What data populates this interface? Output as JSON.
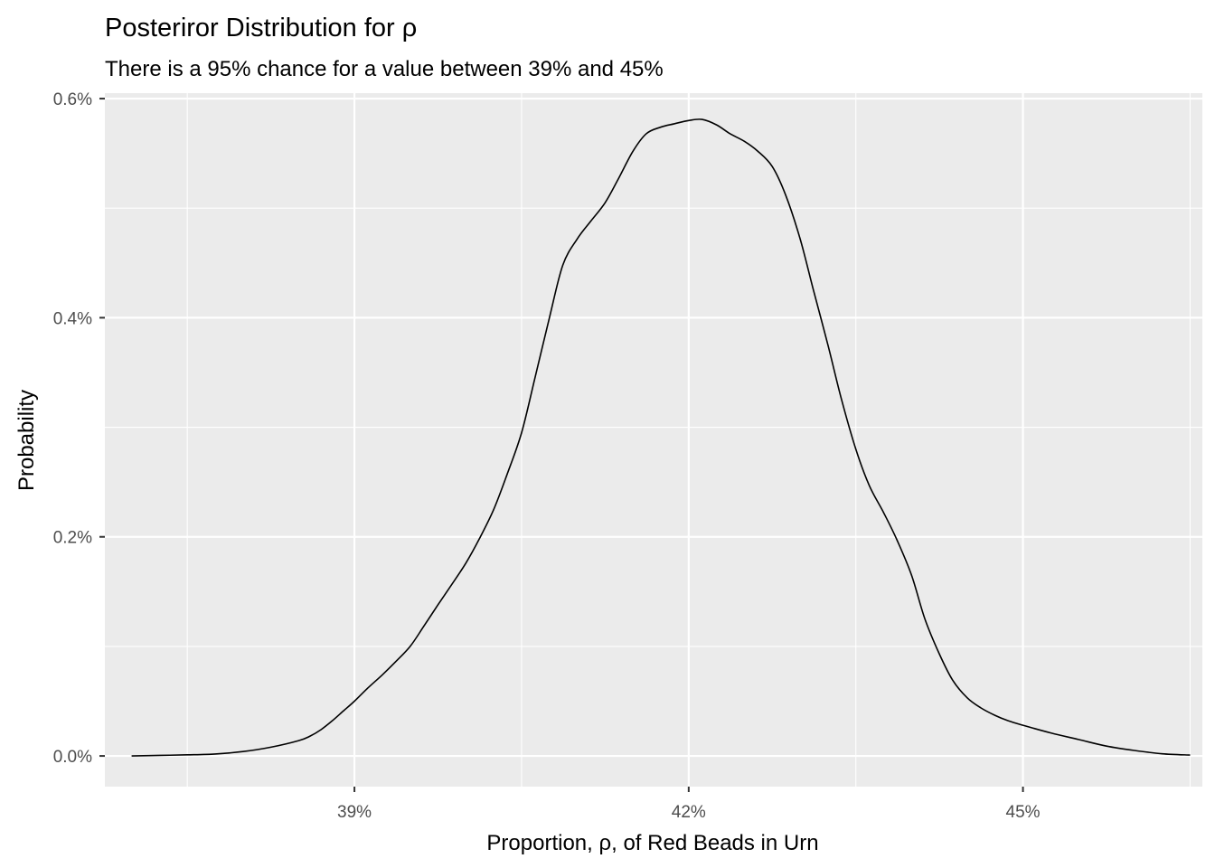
{
  "chart_data": {
    "type": "line",
    "title": "Posteriror Distribution for ρ",
    "subtitle": "There is a 95% chance for a value between 39% and 45%",
    "xlabel": "Proportion, ρ, of Red Beads in Urn",
    "ylabel": "Probability",
    "xlim": [
      0.3676,
      0.4661
    ],
    "ylim": [
      -0.00028,
      0.00605
    ],
    "x_ticks": [
      {
        "value": 0.39,
        "label": "39%"
      },
      {
        "value": 0.42,
        "label": "42%"
      },
      {
        "value": 0.45,
        "label": "45%"
      }
    ],
    "y_ticks": [
      {
        "value": 0.0,
        "label": "0.0%"
      },
      {
        "value": 0.002,
        "label": "0.2%"
      },
      {
        "value": 0.004,
        "label": "0.4%"
      },
      {
        "value": 0.006,
        "label": "0.6%"
      }
    ],
    "x_minor_ticks": [
      0.375,
      0.405,
      0.435,
      0.465
    ],
    "y_minor_ticks": [
      0.001,
      0.003,
      0.005
    ],
    "grid": true,
    "colors": {
      "panel": "#ebebeb",
      "grid": "#ffffff",
      "line": "#000000",
      "tick_label": "#4d4d4d"
    },
    "series": [
      {
        "x": [
          0.37,
          0.3725,
          0.375,
          0.3775,
          0.38,
          0.3825,
          0.385,
          0.386,
          0.387,
          0.388,
          0.389,
          0.39,
          0.3912,
          0.3925,
          0.3937,
          0.395,
          0.3962,
          0.3975,
          0.3987,
          0.4,
          0.4012,
          0.4025,
          0.4037,
          0.405,
          0.4062,
          0.4075,
          0.4087,
          0.41,
          0.4112,
          0.4125,
          0.4137,
          0.415,
          0.4162,
          0.4175,
          0.4187,
          0.42,
          0.4212,
          0.4225,
          0.4237,
          0.425,
          0.4262,
          0.4275,
          0.4287,
          0.43,
          0.4312,
          0.4325,
          0.4337,
          0.435,
          0.4362,
          0.4375,
          0.4387,
          0.44,
          0.4412,
          0.4425,
          0.4437,
          0.445,
          0.4462,
          0.4475,
          0.4487,
          0.45,
          0.4525,
          0.455,
          0.4575,
          0.46,
          0.4625,
          0.465
        ],
        "y": [
          0.0,
          5e-06,
          1e-05,
          1.8e-05,
          4e-05,
          8e-05,
          0.00014,
          0.00018,
          0.00024,
          0.00032,
          0.00041,
          0.0005,
          0.00062,
          0.00074,
          0.00086,
          0.001,
          0.00118,
          0.00138,
          0.00156,
          0.00176,
          0.00198,
          0.00225,
          0.00257,
          0.00295,
          0.00345,
          0.004,
          0.00448,
          0.00472,
          0.00488,
          0.00505,
          0.00527,
          0.00552,
          0.00568,
          0.00574,
          0.00577,
          0.0058,
          0.00581,
          0.00576,
          0.00568,
          0.00561,
          0.00552,
          0.00538,
          0.00512,
          0.00472,
          0.00425,
          0.00375,
          0.00326,
          0.0028,
          0.00247,
          0.00222,
          0.00197,
          0.00165,
          0.00125,
          0.00093,
          0.00069,
          0.00053,
          0.00044,
          0.00037,
          0.00032,
          0.00028,
          0.00021,
          0.00015,
          9e-05,
          5e-05,
          2e-05,
          8e-06
        ]
      }
    ]
  }
}
